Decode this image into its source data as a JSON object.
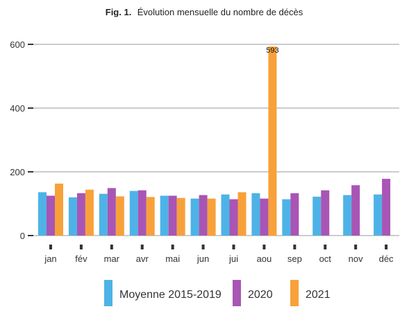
{
  "chart_data": {
    "type": "bar",
    "title_prefix": "Fig. 1.",
    "title": "Évolution mensuelle du nombre de décès",
    "categories": [
      "jan",
      "fév",
      "mar",
      "avr",
      "mai",
      "jun",
      "jui",
      "aou",
      "sep",
      "oct",
      "nov",
      "déc"
    ],
    "series": [
      {
        "name": "Moyenne 2015-2019",
        "color": "#4db3e6",
        "values": [
          136,
          120,
          131,
          140,
          125,
          116,
          129,
          133,
          114,
          122,
          127,
          129
        ]
      },
      {
        "name": "2020",
        "color": "#a855b5",
        "values": [
          125,
          133,
          149,
          142,
          125,
          127,
          114,
          116,
          133,
          142,
          158,
          178
        ]
      },
      {
        "name": "2021",
        "color": "#f8a13a",
        "values": [
          163,
          144,
          123,
          121,
          118,
          116,
          136,
          593,
          null,
          null,
          null,
          null
        ]
      }
    ],
    "data_labels": [
      {
        "series": 2,
        "category": 7,
        "text": "593"
      }
    ],
    "yticks": [
      0,
      200,
      400,
      600
    ],
    "ylim": [
      0,
      600
    ],
    "grid": true,
    "legend_position": "bottom"
  }
}
